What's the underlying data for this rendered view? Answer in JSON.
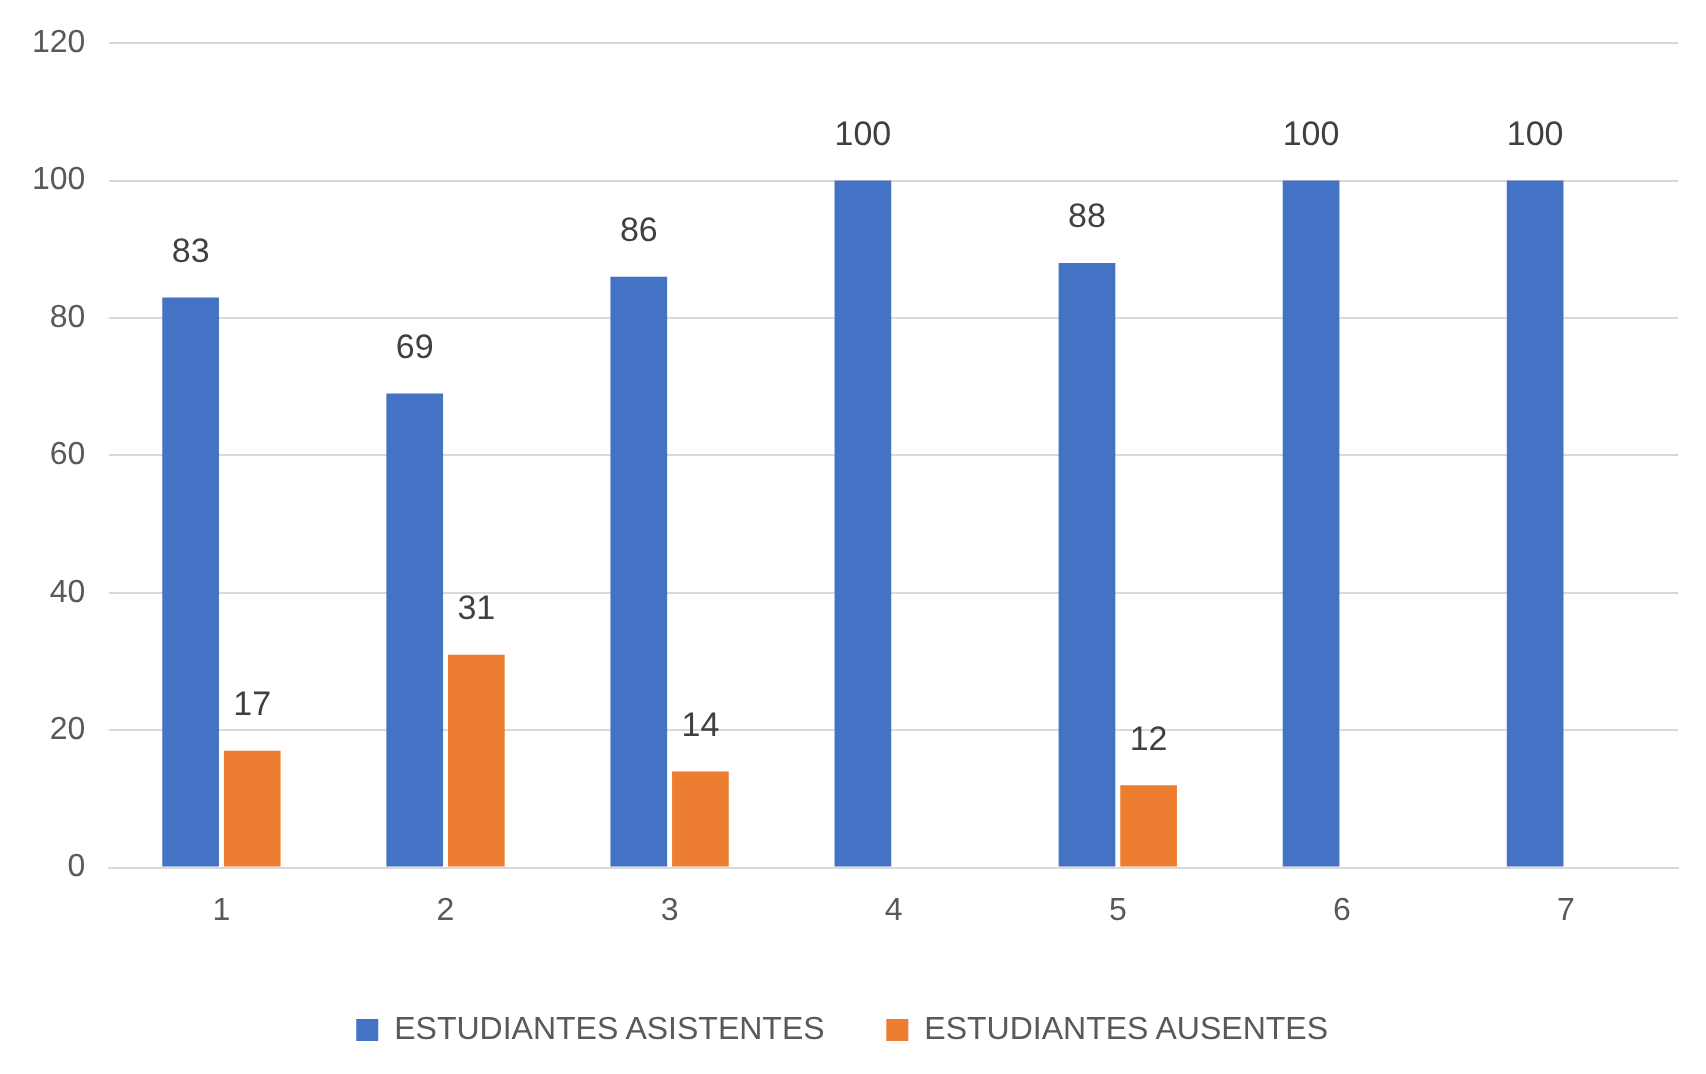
{
  "chart_data": {
    "type": "bar",
    "categories": [
      "1",
      "2",
      "3",
      "4",
      "5",
      "6",
      "7"
    ],
    "series": [
      {
        "name": "ESTUDIANTES ASISTENTES",
        "color": "#4472c4",
        "values": [
          83,
          69,
          86,
          100,
          88,
          100,
          100
        ]
      },
      {
        "name": "ESTUDIANTES AUSENTES",
        "color": "#ed7d31",
        "values": [
          17,
          31,
          14,
          null,
          12,
          null,
          null
        ]
      }
    ],
    "ylim": [
      0,
      120
    ],
    "yticks": [
      0,
      20,
      40,
      60,
      80,
      100,
      120
    ],
    "grid": "y",
    "legend": "bottom",
    "data_labels": true
  }
}
